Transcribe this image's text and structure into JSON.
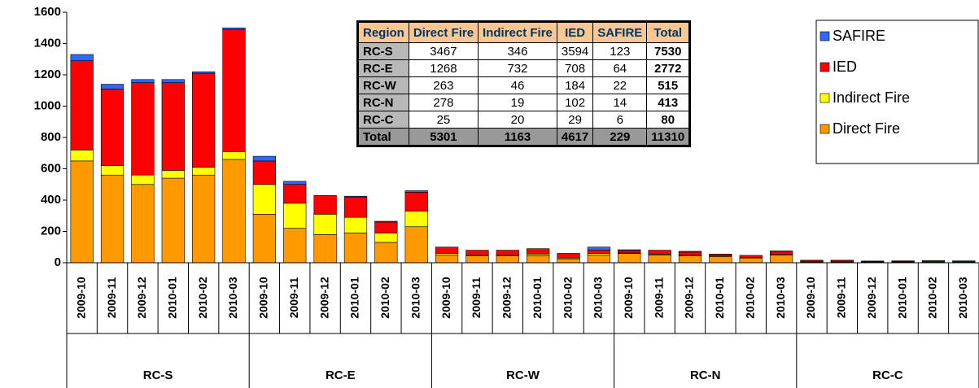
{
  "chart_data": {
    "type": "stacked_bar",
    "categories": [
      "2009-10",
      "2009-11",
      "2009-12",
      "2010-01",
      "2010-02",
      "2010-03",
      "2009-10",
      "2009-11",
      "2009-12",
      "2010-01",
      "2010-02",
      "2010-03",
      "2009-10",
      "2009-11",
      "2009-12",
      "2010-01",
      "2010-02",
      "2010-03",
      "2009-10",
      "2009-11",
      "2009-12",
      "2010-01",
      "2010-02",
      "2010-03",
      "2009-10",
      "2009-11",
      "2009-12",
      "2010-01",
      "2010-02",
      "2010-03"
    ],
    "groups": [
      "RC-S",
      "RC-E",
      "RC-W",
      "RC-N",
      "RC-C"
    ],
    "series": [
      {
        "name": "Direct Fire",
        "color": "#ff9900",
        "values": [
          650,
          560,
          500,
          540,
          560,
          660,
          310,
          220,
          180,
          190,
          130,
          230,
          50,
          45,
          45,
          45,
          25,
          50,
          60,
          50,
          45,
          40,
          30,
          50,
          5,
          5,
          4,
          4,
          4,
          3
        ]
      },
      {
        "name": "Indirect Fire",
        "color": "#ffff00",
        "values": [
          70,
          60,
          60,
          50,
          50,
          50,
          190,
          160,
          130,
          100,
          60,
          100,
          10,
          5,
          5,
          10,
          5,
          10,
          3,
          5,
          3,
          3,
          2,
          3,
          4,
          4,
          3,
          3,
          3,
          3
        ]
      },
      {
        "name": "IED",
        "color": "#ff0000",
        "values": [
          570,
          490,
          590,
          560,
          600,
          780,
          150,
          120,
          120,
          130,
          70,
          120,
          40,
          30,
          30,
          35,
          30,
          20,
          15,
          25,
          20,
          10,
          15,
          20,
          6,
          6,
          3,
          4,
          5,
          5
        ]
      },
      {
        "name": "SAFIRE",
        "color": "#3366ff",
        "values": [
          40,
          30,
          20,
          20,
          10,
          10,
          30,
          20,
          0,
          5,
          5,
          10,
          0,
          0,
          0,
          0,
          0,
          20,
          5,
          0,
          5,
          2,
          0,
          2,
          1,
          1,
          1,
          1,
          1,
          1
        ]
      }
    ],
    "ylim": [
      0,
      1600
    ],
    "yticks": [
      0,
      200,
      400,
      600,
      800,
      1000,
      1200,
      1400,
      1600
    ],
    "legend": "right"
  },
  "table": {
    "header": [
      "Region",
      "Direct Fire",
      "Indirect Fire",
      "IED",
      "SAFIRE",
      "Total"
    ],
    "rows": [
      [
        "RC-S",
        3467,
        346,
        3594,
        123,
        7530
      ],
      [
        "RC-E",
        1268,
        732,
        708,
        64,
        2772
      ],
      [
        "RC-W",
        263,
        46,
        184,
        22,
        515
      ],
      [
        "RC-N",
        278,
        19,
        102,
        14,
        413
      ],
      [
        "RC-C",
        25,
        20,
        29,
        6,
        80
      ],
      [
        "Total",
        5301,
        1163,
        4617,
        229,
        11310
      ]
    ]
  }
}
